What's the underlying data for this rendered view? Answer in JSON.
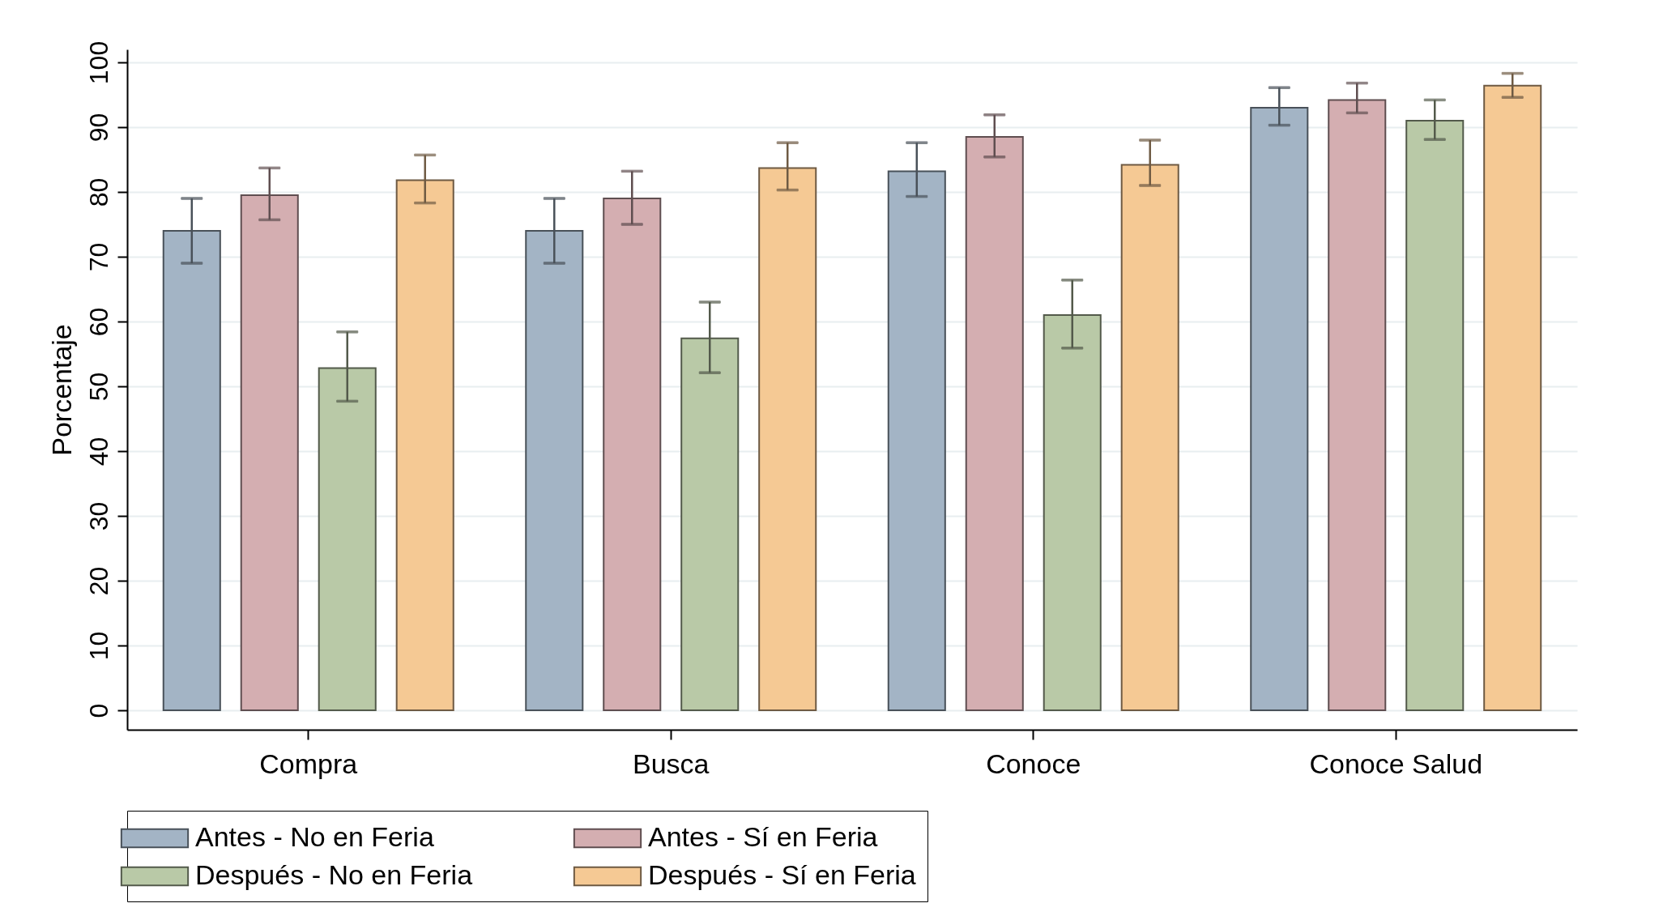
{
  "chart_data": {
    "type": "bar",
    "ylabel": "Porcentaje",
    "categories": [
      "Compra",
      "Busca",
      "Conoce",
      "Conoce Salud"
    ],
    "ylim": [
      -3,
      102
    ],
    "yticks": [
      0,
      10,
      20,
      30,
      40,
      50,
      60,
      70,
      80,
      90,
      100
    ],
    "grid": "y",
    "legend": "bottom",
    "series": [
      {
        "name": "Antes - No en Feria",
        "color": "#a3b4c5",
        "values": [
          74,
          74,
          83.2,
          93
        ],
        "errors": [
          [
            69,
            79
          ],
          [
            69,
            79
          ],
          [
            79.3,
            87.6
          ],
          [
            90.3,
            96.1
          ]
        ]
      },
      {
        "name": "Antes - Sí en  Feria",
        "color": "#d4aeb1",
        "values": [
          79.5,
          79,
          88.5,
          94.2
        ],
        "errors": [
          [
            75.7,
            83.7
          ],
          [
            75,
            83.2
          ],
          [
            85.4,
            91.9
          ],
          [
            92.2,
            96.8
          ]
        ]
      },
      {
        "name": "Después - No en Feria",
        "color": "#b9c9a7",
        "values": [
          52.8,
          57.4,
          61,
          91
        ],
        "errors": [
          [
            47.7,
            58.4
          ],
          [
            52.1,
            63
          ],
          [
            55.9,
            66.4
          ],
          [
            88.1,
            94.2
          ]
        ]
      },
      {
        "name": "Después - Sí en Feria",
        "color": "#f5c994",
        "values": [
          81.8,
          83.7,
          84.2,
          96.4
        ],
        "errors": [
          [
            78.3,
            85.7
          ],
          [
            80.3,
            87.6
          ],
          [
            81,
            88
          ],
          [
            94.6,
            98.3
          ]
        ]
      }
    ]
  }
}
